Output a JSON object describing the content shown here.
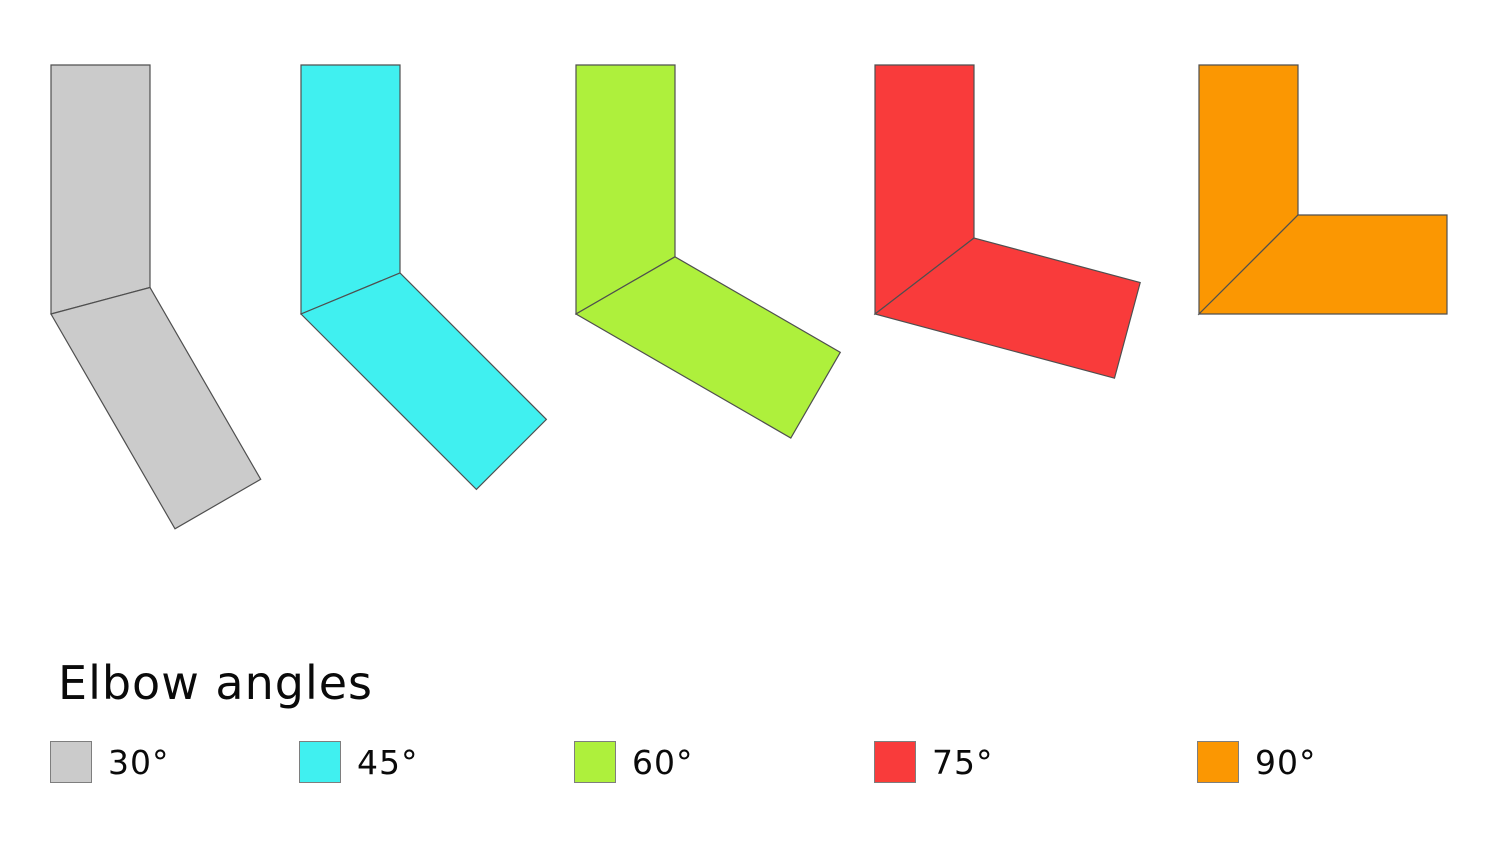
{
  "figure": {
    "title": "Elbow angles",
    "background": "#ffffff",
    "outline_color": "#4f4f4f",
    "swatch_border_color": "#7e7e7e",
    "text_color": "#0a0a0a"
  },
  "elbows": [
    {
      "angle_deg": 30,
      "label": "30°",
      "color": "#cbcbcb"
    },
    {
      "angle_deg": 45,
      "label": "45°",
      "color": "#40f0f0"
    },
    {
      "angle_deg": 60,
      "label": "60°",
      "color": "#aef03c"
    },
    {
      "angle_deg": 75,
      "label": "75°",
      "color": "#f93b3b"
    },
    {
      "angle_deg": 90,
      "label": "90°",
      "color": "#fb9702"
    }
  ]
}
